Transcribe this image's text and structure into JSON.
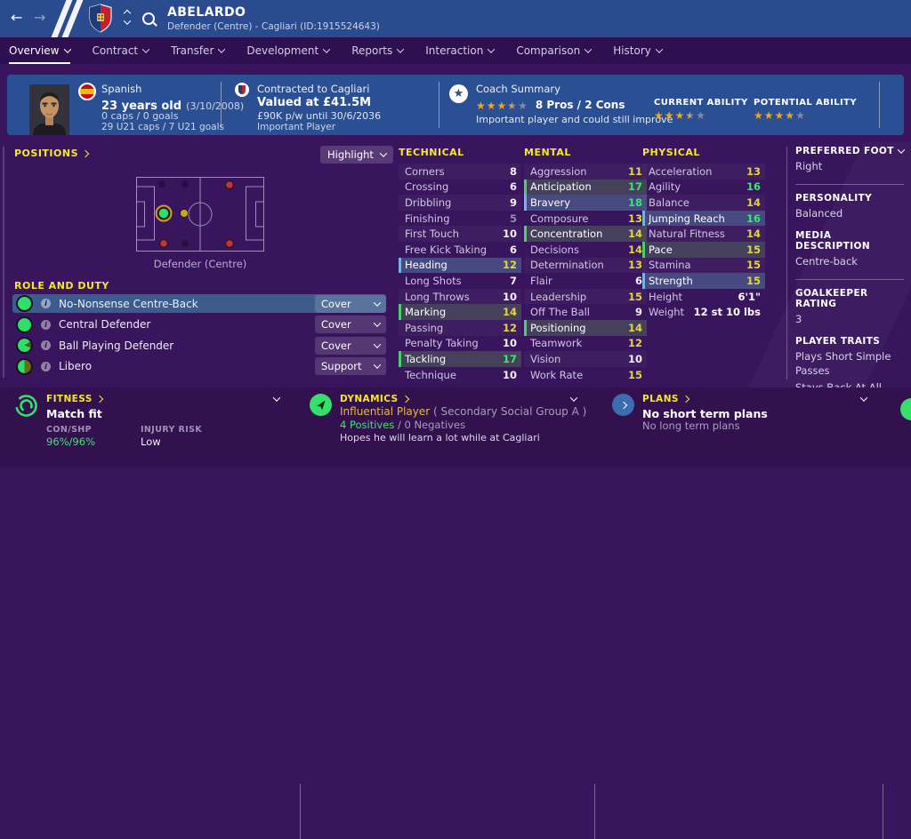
{
  "header": {
    "back": "←",
    "forward": "→",
    "player_name": "ABELARDO",
    "player_subtitle": "Defender (Centre) - Cagliari (ID:1915524643)"
  },
  "nav_tabs": [
    "Overview",
    "Contract",
    "Transfer",
    "Development",
    "Reports",
    "Interaction",
    "Comparison",
    "History"
  ],
  "info_bar": {
    "nationality": "Spanish",
    "age": "23 years old",
    "birth_date": "(3/10/2008)",
    "caps": "0 caps / 0 goals",
    "u21_caps": "29 U21 caps / 7 U21 goals",
    "contract_club": "Contracted to Cagliari",
    "value": "Valued at £41.5M",
    "wage": "£90K p/w until 30/6/2036",
    "squad_status": "Important Player",
    "coach_summary": {
      "title": "Coach Summary",
      "stars": 3.5,
      "pros_cons": "8 Pros / 2 Cons",
      "note": "Important player and could still improve"
    },
    "current_ability": {
      "label": "CURRENT ABILITY",
      "stars": 3.5
    },
    "potential_ability": {
      "label": "POTENTIAL ABILITY",
      "stars": 4
    }
  },
  "positions_panel": {
    "title": "POSITIONS",
    "highlight_button": "Highlight",
    "position_caption": "Defender (Centre)"
  },
  "role_panel": {
    "title": "ROLE AND DUTY",
    "rows": [
      {
        "role": "No-Nonsense Centre-Back",
        "duty": "Cover",
        "selected": true,
        "ability": "full"
      },
      {
        "role": "Central Defender",
        "duty": "Cover",
        "selected": false,
        "ability": "full"
      },
      {
        "role": "Ball Playing Defender",
        "duty": "Cover",
        "selected": false,
        "ability": "high"
      },
      {
        "role": "Libero",
        "duty": "Support",
        "selected": false,
        "ability": "half"
      }
    ]
  },
  "attributes": {
    "technical": {
      "title": "TECHNICAL",
      "rows": [
        {
          "n": "Corners",
          "v": 8,
          "hl": ""
        },
        {
          "n": "Crossing",
          "v": 6,
          "hl": ""
        },
        {
          "n": "Dribbling",
          "v": 9,
          "hl": ""
        },
        {
          "n": "Finishing",
          "v": 5,
          "hl": ""
        },
        {
          "n": "First Touch",
          "v": 10,
          "hl": ""
        },
        {
          "n": "Free Kick Taking",
          "v": 6,
          "hl": ""
        },
        {
          "n": "Heading",
          "v": 12,
          "hl": "blue"
        },
        {
          "n": "Long Shots",
          "v": 7,
          "hl": ""
        },
        {
          "n": "Long Throws",
          "v": 10,
          "hl": ""
        },
        {
          "n": "Marking",
          "v": 14,
          "hl": "green"
        },
        {
          "n": "Passing",
          "v": 12,
          "hl": ""
        },
        {
          "n": "Penalty Taking",
          "v": 10,
          "hl": ""
        },
        {
          "n": "Tackling",
          "v": 17,
          "hl": "green"
        },
        {
          "n": "Technique",
          "v": 10,
          "hl": ""
        }
      ]
    },
    "mental": {
      "title": "MENTAL",
      "rows": [
        {
          "n": "Aggression",
          "v": 11,
          "hl": ""
        },
        {
          "n": "Anticipation",
          "v": 17,
          "hl": "green"
        },
        {
          "n": "Bravery",
          "v": 18,
          "hl": "blue"
        },
        {
          "n": "Composure",
          "v": 13,
          "hl": ""
        },
        {
          "n": "Concentration",
          "v": 14,
          "hl": "green"
        },
        {
          "n": "Decisions",
          "v": 14,
          "hl": ""
        },
        {
          "n": "Determination",
          "v": 13,
          "hl": ""
        },
        {
          "n": "Flair",
          "v": 6,
          "hl": ""
        },
        {
          "n": "Leadership",
          "v": 15,
          "hl": ""
        },
        {
          "n": "Off The Ball",
          "v": 9,
          "hl": ""
        },
        {
          "n": "Positioning",
          "v": 14,
          "hl": "green"
        },
        {
          "n": "Teamwork",
          "v": 12,
          "hl": ""
        },
        {
          "n": "Vision",
          "v": 10,
          "hl": ""
        },
        {
          "n": "Work Rate",
          "v": 15,
          "hl": ""
        }
      ]
    },
    "physical": {
      "title": "PHYSICAL",
      "rows": [
        {
          "n": "Acceleration",
          "v": 13,
          "hl": ""
        },
        {
          "n": "Agility",
          "v": 16,
          "hl": ""
        },
        {
          "n": "Balance",
          "v": 14,
          "hl": ""
        },
        {
          "n": "Jumping Reach",
          "v": 16,
          "hl": "blue"
        },
        {
          "n": "Natural Fitness",
          "v": 14,
          "hl": ""
        },
        {
          "n": "Pace",
          "v": 15,
          "hl": "green"
        },
        {
          "n": "Stamina",
          "v": 15,
          "hl": ""
        },
        {
          "n": "Strength",
          "v": 15,
          "hl": "blue"
        }
      ]
    },
    "physical_extra": [
      {
        "n": "Height",
        "v": "6'1\""
      },
      {
        "n": "Weight",
        "v": "12 st 10 lbs"
      }
    ]
  },
  "sidebar": {
    "sections": [
      {
        "title": "PREFERRED FOOT",
        "values": [
          "Right"
        ],
        "chevron": true,
        "divider": true
      },
      {
        "title": "PERSONALITY",
        "values": [
          "Balanced"
        ],
        "chevron": false,
        "divider": false
      },
      {
        "title": "MEDIA DESCRIPTION",
        "values": [
          "Centre-back"
        ],
        "chevron": false,
        "divider": true
      },
      {
        "title": "GOALKEEPER RATING",
        "values": [
          "3"
        ],
        "chevron": false,
        "divider": false
      },
      {
        "title": "PLAYER TRAITS",
        "values": [
          "Plays Short Simple Passes",
          "Stays Back At All Times"
        ],
        "chevron": false,
        "divider": false
      }
    ]
  },
  "footer": {
    "fitness": {
      "title": "FITNESS",
      "status": "Match fit",
      "con_shp_label": "CON/SHP",
      "con_shp_value": "96%/96%",
      "injury_label": "INJURY RISK",
      "injury_value": "Low"
    },
    "dynamics": {
      "title": "DYNAMICS",
      "role": "Influential Player",
      "group": "( Secondary Social Group A )",
      "positives": "4 Positives",
      "separator": " / ",
      "negatives": "0 Negatives",
      "note": "Hopes he will learn a lot while at Cagliari"
    },
    "plans": {
      "title": "PLANS",
      "short_term": "No short term plans",
      "long_term": "No long term plans"
    }
  },
  "colors": {
    "header_blue": "#2a4b8e",
    "info_blue": "#2a4f92",
    "nav_purple": "#2e0f50",
    "main_purple": "#38155c",
    "accent_yellow": "#f7e72a",
    "attr_yellow": "#e5d63d",
    "attr_green": "#3ae773",
    "star_gold": "#f2a51c",
    "role_green": "#2ee06a",
    "red_dot": "#c0392b"
  }
}
